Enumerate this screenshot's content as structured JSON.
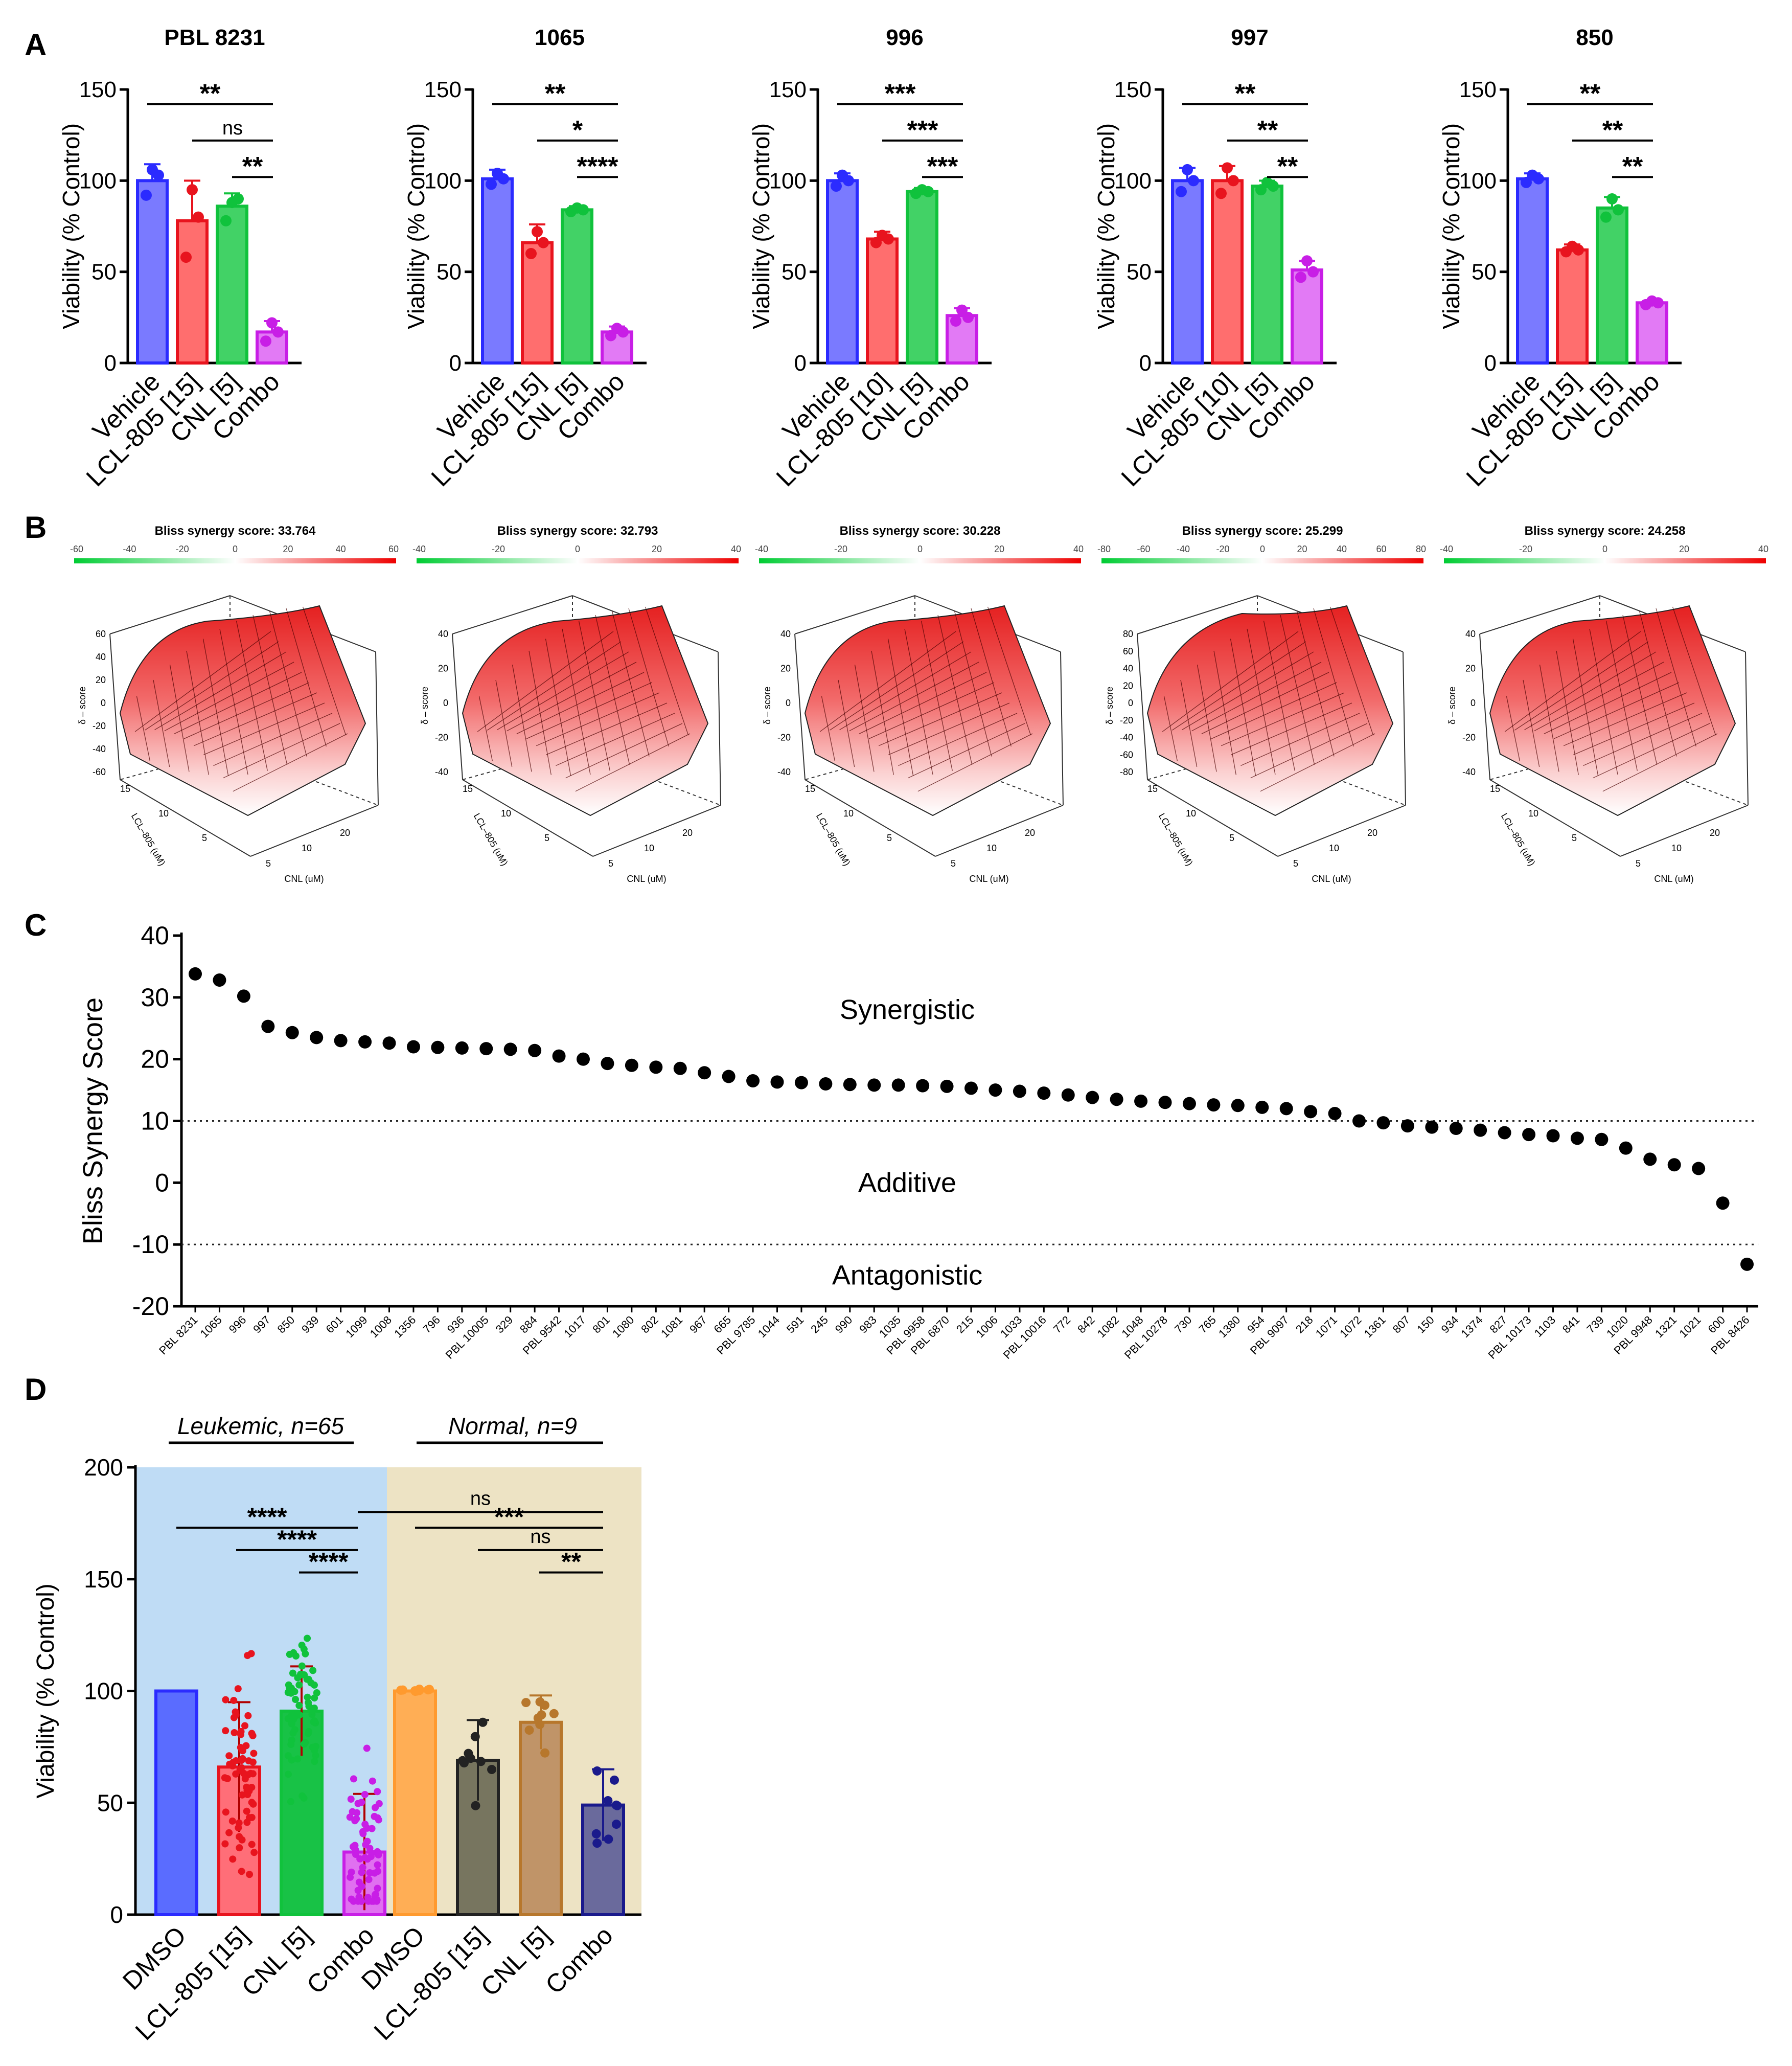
{
  "panel_labels": [
    "A",
    "B",
    "C",
    "D"
  ],
  "panelA": {
    "ylabel": "Viability (% Control)",
    "yticks": [
      "0",
      "50",
      "100",
      "150"
    ],
    "ylim": [
      0,
      150
    ],
    "colors": {
      "vehicle": "#2b2bff",
      "lcl": "#e8141e",
      "cnl": "#10c23c",
      "combo": "#c81ee6",
      "vehicle_fill": "#7a7aff",
      "lcl_fill": "#ff6e6e",
      "cnl_fill": "#42d266",
      "combo_fill": "#e27af5"
    }
  },
  "panelB": {
    "ylabel": "δ – score",
    "xlabel": "CNL (uM)",
    "zlabel": "LCL–805 (uM)",
    "x_ticks": [
      "5",
      "10",
      "20"
    ],
    "y_ticks": [
      "5",
      "10",
      "15"
    ],
    "legend_colors": {
      "low": "#00cc33",
      "mid": "#ffffff",
      "high": "#ee0000"
    },
    "plots": [
      {
        "title": "Bliss synergy score: 33.764",
        "scale_ticks": [
          "-60",
          "-40",
          "-20",
          "0",
          "20",
          "40",
          "60"
        ],
        "z_ticks": [
          "60",
          "40",
          "20",
          "0",
          "-20",
          "-40",
          "-60"
        ]
      },
      {
        "title": "Bliss synergy score: 32.793",
        "scale_ticks": [
          "-40",
          "-20",
          "0",
          "20",
          "40"
        ],
        "z_ticks": [
          "40",
          "20",
          "0",
          "-20",
          "-40"
        ]
      },
      {
        "title": "Bliss synergy score: 30.228",
        "scale_ticks": [
          "-40",
          "-20",
          "0",
          "20",
          "40"
        ],
        "z_ticks": [
          "40",
          "20",
          "0",
          "-20",
          "-40"
        ]
      },
      {
        "title": "Bliss synergy score: 25.299",
        "scale_ticks": [
          "-80",
          "-60",
          "-40",
          "-20",
          "0",
          "20",
          "40",
          "60",
          "80"
        ],
        "z_ticks": [
          "80",
          "60",
          "40",
          "20",
          "0",
          "-20",
          "-40",
          "-60",
          "-80"
        ]
      },
      {
        "title": "Bliss synergy score: 24.258",
        "scale_ticks": [
          "-40",
          "-20",
          "0",
          "20",
          "40"
        ],
        "z_ticks": [
          "40",
          "20",
          "0",
          "-20",
          "-40"
        ]
      }
    ]
  },
  "panelC": {
    "ylabel": "Bliss Synergy Score",
    "yticks": [
      "-20",
      "-10",
      "0",
      "10",
      "20",
      "30",
      "40"
    ],
    "regions": {
      "synergistic": "Synergistic",
      "additive": "Additive",
      "antagonistic": "Antagonistic"
    }
  },
  "panelD": {
    "ylabel": "Viability (% Control)",
    "yticks": [
      "0",
      "50",
      "100",
      "150",
      "200"
    ],
    "group_leukemic": "Leukemic, n=65",
    "group_normal": "Normal, n=9",
    "xcategories": [
      "DMSO",
      "LCL-805 [15]",
      "CNL [5]",
      "Combo",
      "DMSO",
      "LCL-805 [15]",
      "CNL [5]",
      "Combo"
    ],
    "bg_leukemic": "#bfdcf5",
    "bg_normal": "#ede3c4"
  },
  "chart_data": [
    {
      "type": "bar",
      "title": "PBL 8231",
      "categories": [
        "Vehicle",
        "LCL-805 [15]",
        "CNL [5]",
        "Combo"
      ],
      "values": [
        100,
        78,
        86,
        17
      ],
      "errors": [
        9,
        22,
        7,
        6
      ],
      "points": [
        [
          92,
          106,
          103
        ],
        [
          58,
          95,
          80
        ],
        [
          78,
          88,
          90
        ],
        [
          12,
          22,
          17
        ]
      ],
      "ylim": [
        0,
        150
      ],
      "significance": [
        {
          "from": 0,
          "to": 3,
          "label": "**"
        },
        {
          "from": 1,
          "to": 3,
          "label": "ns"
        },
        {
          "from": 2,
          "to": 3,
          "label": "**"
        }
      ]
    },
    {
      "type": "bar",
      "title": "1065",
      "categories": [
        "Vehicle",
        "LCL-805 [15]",
        "CNL [5]",
        "Combo"
      ],
      "values": [
        101,
        66,
        84,
        17
      ],
      "errors": [
        5,
        10,
        2,
        3
      ],
      "points": [
        [
          98,
          104,
          101
        ],
        [
          60,
          72,
          66
        ],
        [
          83,
          85,
          84
        ],
        [
          15,
          19,
          17
        ]
      ],
      "ylim": [
        0,
        150
      ],
      "significance": [
        {
          "from": 0,
          "to": 3,
          "label": "**"
        },
        {
          "from": 1,
          "to": 3,
          "label": "*"
        },
        {
          "from": 2,
          "to": 3,
          "label": "****"
        }
      ]
    },
    {
      "type": "bar",
      "title": "996",
      "categories": [
        "Vehicle",
        "LCL-805 [10]",
        "CNL [5]",
        "Combo"
      ],
      "values": [
        100,
        68,
        94,
        26
      ],
      "errors": [
        4,
        4,
        2,
        4
      ],
      "points": [
        [
          97,
          103,
          100
        ],
        [
          66,
          70,
          68
        ],
        [
          93,
          95,
          94
        ],
        [
          23,
          29,
          25
        ]
      ],
      "ylim": [
        0,
        150
      ],
      "significance": [
        {
          "from": 0,
          "to": 3,
          "label": "***"
        },
        {
          "from": 1,
          "to": 3,
          "label": "***"
        },
        {
          "from": 2,
          "to": 3,
          "label": "***"
        }
      ]
    },
    {
      "type": "bar",
      "title": "997",
      "categories": [
        "Vehicle",
        "LCL-805 [10]",
        "CNL [5]",
        "Combo"
      ],
      "values": [
        100,
        100,
        97,
        51
      ],
      "errors": [
        7,
        8,
        3,
        5
      ],
      "points": [
        [
          94,
          106,
          100
        ],
        [
          93,
          107,
          100
        ],
        [
          95,
          99,
          97
        ],
        [
          47,
          56,
          50
        ]
      ],
      "ylim": [
        0,
        150
      ],
      "significance": [
        {
          "from": 0,
          "to": 3,
          "label": "**"
        },
        {
          "from": 1,
          "to": 3,
          "label": "**"
        },
        {
          "from": 2,
          "to": 3,
          "label": "**"
        }
      ]
    },
    {
      "type": "bar",
      "title": "850",
      "categories": [
        "Vehicle",
        "LCL-805 [15]",
        "CNL [5]",
        "Combo"
      ],
      "values": [
        101,
        62,
        85,
        33
      ],
      "errors": [
        3,
        3,
        6,
        1
      ],
      "points": [
        [
          99,
          103,
          101
        ],
        [
          61,
          64,
          62
        ],
        [
          80,
          90,
          84
        ],
        [
          32,
          34,
          33
        ]
      ],
      "ylim": [
        0,
        150
      ],
      "significance": [
        {
          "from": 0,
          "to": 3,
          "label": "**"
        },
        {
          "from": 1,
          "to": 3,
          "label": "**"
        },
        {
          "from": 2,
          "to": 3,
          "label": "**"
        }
      ]
    },
    {
      "type": "scatter",
      "ylabel": "Bliss Synergy Score",
      "ylim": [
        -20,
        40
      ],
      "thresholds": [
        10,
        -10
      ],
      "categories": [
        "PBL 8231",
        "1065",
        "996",
        "997",
        "850",
        "939",
        "601",
        "1099",
        "1008",
        "1356",
        "796",
        "936",
        "PBL 10005",
        "329",
        "884",
        "PBL 9542",
        "1017",
        "801",
        "1080",
        "802",
        "1081",
        "967",
        "665",
        "PBL 9785",
        "1044",
        "591",
        "245",
        "990",
        "983",
        "1035",
        "PBL 9958",
        "PBL 6870",
        "215",
        "1006",
        "1033",
        "PBL 10016",
        "772",
        "842",
        "1082",
        "1048",
        "PBL 10278",
        "730",
        "765",
        "1380",
        "954",
        "PBL 9097",
        "218",
        "1071",
        "1072",
        "1361",
        "807",
        "150",
        "934",
        "1374",
        "827",
        "PBL 10173",
        "1103",
        "841",
        "739",
        "1020",
        "PBL 9948",
        "1321",
        "1021",
        "600",
        "PBL 8426"
      ],
      "values": [
        33.8,
        32.8,
        30.2,
        25.3,
        24.3,
        23.5,
        23.0,
        22.8,
        22.6,
        22.0,
        21.9,
        21.8,
        21.7,
        21.6,
        21.4,
        20.5,
        20.0,
        19.3,
        19.0,
        18.7,
        18.5,
        17.8,
        17.2,
        16.5,
        16.3,
        16.2,
        16.0,
        15.9,
        15.8,
        15.8,
        15.7,
        15.6,
        15.3,
        15.0,
        14.8,
        14.5,
        14.2,
        13.8,
        13.5,
        13.2,
        13.0,
        12.8,
        12.6,
        12.5,
        12.2,
        12.0,
        11.5,
        11.2,
        10.0,
        9.7,
        9.2,
        9.0,
        8.8,
        8.5,
        8.1,
        7.8,
        7.6,
        7.2,
        7.0,
        5.6,
        3.8,
        2.9,
        2.3,
        -3.3,
        -13.2
      ]
    },
    {
      "type": "bar",
      "ylabel": "Viability (% Control)",
      "ylim": [
        0,
        200
      ],
      "categories": [
        "DMSO",
        "LCL-805 [15]",
        "CNL [5]",
        "Combo",
        "DMSO",
        "LCL-805 [15]",
        "CNL [5]",
        "Combo"
      ],
      "groups": [
        "Leukemic, n=65",
        "Leukemic, n=65",
        "Leukemic, n=65",
        "Leukemic, n=65",
        "Normal, n=9",
        "Normal, n=9",
        "Normal, n=9",
        "Normal, n=9"
      ],
      "values": [
        100,
        66,
        91,
        28,
        100,
        69,
        86,
        49
      ],
      "errors": [
        0,
        29,
        20,
        26,
        0,
        18,
        12,
        16
      ],
      "point_ranges": [
        [
          100,
          100
        ],
        [
          18,
          135
        ],
        [
          40,
          140
        ],
        [
          6,
          108
        ],
        [
          99,
          101
        ],
        [
          38,
          86
        ],
        [
          62,
          104
        ],
        [
          25,
          75
        ]
      ],
      "significance": [
        {
          "from": 4,
          "to": 7,
          "label": "ns"
        },
        {
          "from": 0,
          "to": 3,
          "label": "****"
        },
        {
          "from": 1,
          "to": 3,
          "label": "****"
        },
        {
          "from": 2,
          "to": 3,
          "label": "****"
        },
        {
          "from": 4,
          "to": 7,
          "label": "***"
        },
        {
          "from": 5,
          "to": 7,
          "label": "ns"
        },
        {
          "from": 6,
          "to": 7,
          "label": "**"
        }
      ]
    }
  ]
}
